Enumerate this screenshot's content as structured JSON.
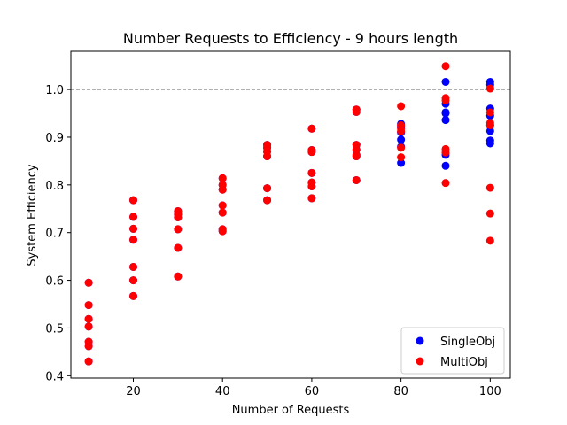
{
  "chart_data": {
    "type": "scatter",
    "title": "Number Requests to Efficiency - 9 hours length",
    "xlabel": "Number of Requests",
    "ylabel": "System Efficiency",
    "xlim": [
      6,
      104.5
    ],
    "ylim": [
      0.395,
      1.08
    ],
    "xticks": [
      20,
      40,
      60,
      80,
      100
    ],
    "yticks": [
      0.4,
      0.5,
      0.6,
      0.7,
      0.8,
      0.9,
      1.0
    ],
    "xtick_labels": [
      "20",
      "40",
      "60",
      "80",
      "100"
    ],
    "ytick_labels": [
      "0.4",
      "0.5",
      "0.6",
      "0.7",
      "0.8",
      "0.9",
      "1.0"
    ],
    "reference_line": {
      "y": 1.0,
      "style": "dashed",
      "color": "#808080"
    },
    "grid": false,
    "legend_position": "lower-right",
    "series": [
      {
        "name": "SingleObj",
        "color": "#0000ff",
        "points": [
          [
            10,
            0.595
          ],
          [
            10,
            0.548
          ],
          [
            10,
            0.519
          ],
          [
            10,
            0.503
          ],
          [
            10,
            0.471
          ],
          [
            10,
            0.462
          ],
          [
            10,
            0.43
          ],
          [
            20,
            0.768
          ],
          [
            20,
            0.733
          ],
          [
            20,
            0.708
          ],
          [
            20,
            0.685
          ],
          [
            20,
            0.628
          ],
          [
            20,
            0.6
          ],
          [
            20,
            0.567
          ],
          [
            30,
            0.745
          ],
          [
            30,
            0.738
          ],
          [
            30,
            0.732
          ],
          [
            30,
            0.707
          ],
          [
            30,
            0.668
          ],
          [
            30,
            0.608
          ],
          [
            40,
            0.814
          ],
          [
            40,
            0.8
          ],
          [
            40,
            0.79
          ],
          [
            40,
            0.757
          ],
          [
            40,
            0.742
          ],
          [
            40,
            0.707
          ],
          [
            40,
            0.703
          ],
          [
            50,
            0.884
          ],
          [
            50,
            0.878
          ],
          [
            50,
            0.87
          ],
          [
            50,
            0.86
          ],
          [
            50,
            0.793
          ],
          [
            50,
            0.768
          ],
          [
            60,
            0.918
          ],
          [
            60,
            0.873
          ],
          [
            60,
            0.869
          ],
          [
            60,
            0.825
          ],
          [
            60,
            0.805
          ],
          [
            60,
            0.797
          ],
          [
            60,
            0.772
          ],
          [
            70,
            0.958
          ],
          [
            70,
            0.953
          ],
          [
            70,
            0.884
          ],
          [
            70,
            0.874
          ],
          [
            70,
            0.863
          ],
          [
            70,
            0.86
          ],
          [
            70,
            0.81
          ],
          [
            80,
            0.928
          ],
          [
            80,
            0.922
          ],
          [
            80,
            0.91
          ],
          [
            80,
            0.895
          ],
          [
            80,
            0.88
          ],
          [
            80,
            0.846
          ],
          [
            90,
            1.016
          ],
          [
            90,
            0.97
          ],
          [
            90,
            0.952
          ],
          [
            90,
            0.95
          ],
          [
            90,
            0.936
          ],
          [
            90,
            0.863
          ],
          [
            90,
            0.84
          ],
          [
            100,
            1.016
          ],
          [
            100,
            1.01
          ],
          [
            100,
            0.96
          ],
          [
            100,
            0.945
          ],
          [
            100,
            0.926
          ],
          [
            100,
            0.913
          ],
          [
            100,
            0.893
          ],
          [
            100,
            0.887
          ]
        ]
      },
      {
        "name": "MultiObj",
        "color": "#ff0000",
        "points": [
          [
            10,
            0.595
          ],
          [
            10,
            0.548
          ],
          [
            10,
            0.519
          ],
          [
            10,
            0.503
          ],
          [
            10,
            0.471
          ],
          [
            10,
            0.462
          ],
          [
            10,
            0.43
          ],
          [
            20,
            0.768
          ],
          [
            20,
            0.733
          ],
          [
            20,
            0.708
          ],
          [
            20,
            0.685
          ],
          [
            20,
            0.628
          ],
          [
            20,
            0.6
          ],
          [
            20,
            0.567
          ],
          [
            30,
            0.745
          ],
          [
            30,
            0.738
          ],
          [
            30,
            0.732
          ],
          [
            30,
            0.707
          ],
          [
            30,
            0.668
          ],
          [
            30,
            0.608
          ],
          [
            40,
            0.814
          ],
          [
            40,
            0.8
          ],
          [
            40,
            0.79
          ],
          [
            40,
            0.757
          ],
          [
            40,
            0.742
          ],
          [
            40,
            0.707
          ],
          [
            40,
            0.703
          ],
          [
            50,
            0.884
          ],
          [
            50,
            0.878
          ],
          [
            50,
            0.87
          ],
          [
            50,
            0.86
          ],
          [
            50,
            0.793
          ],
          [
            50,
            0.768
          ],
          [
            60,
            0.918
          ],
          [
            60,
            0.873
          ],
          [
            60,
            0.869
          ],
          [
            60,
            0.825
          ],
          [
            60,
            0.805
          ],
          [
            60,
            0.797
          ],
          [
            60,
            0.772
          ],
          [
            70,
            0.958
          ],
          [
            70,
            0.953
          ],
          [
            70,
            0.884
          ],
          [
            70,
            0.874
          ],
          [
            70,
            0.863
          ],
          [
            70,
            0.86
          ],
          [
            70,
            0.81
          ],
          [
            80,
            0.965
          ],
          [
            80,
            0.925
          ],
          [
            80,
            0.918
          ],
          [
            80,
            0.912
          ],
          [
            80,
            0.878
          ],
          [
            80,
            0.858
          ],
          [
            90,
            1.049
          ],
          [
            90,
            0.982
          ],
          [
            90,
            0.977
          ],
          [
            90,
            0.875
          ],
          [
            90,
            0.868
          ],
          [
            90,
            0.804
          ],
          [
            100,
            1.002
          ],
          [
            100,
            0.952
          ],
          [
            100,
            0.93
          ],
          [
            100,
            0.925
          ],
          [
            100,
            0.794
          ],
          [
            100,
            0.74
          ],
          [
            100,
            0.683
          ]
        ]
      }
    ]
  }
}
